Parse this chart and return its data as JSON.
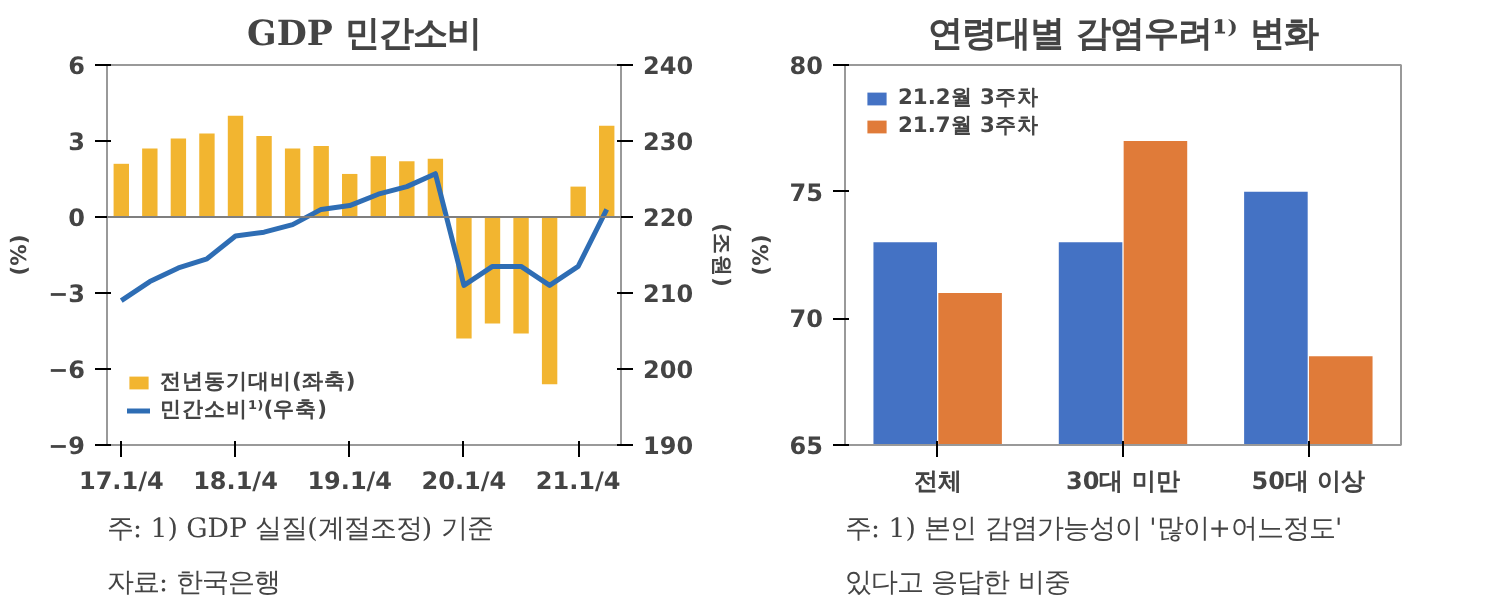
{
  "chart_data": [
    {
      "type": "bar",
      "title": "GDP 민간소비",
      "ylabel": "(%)",
      "y2label": "(조원)",
      "categories": [
        "17.1/4",
        null,
        null,
        null,
        "18.1/4",
        null,
        null,
        null,
        "19.1/4",
        null,
        null,
        null,
        "20.1/4",
        null,
        null,
        null,
        "21.1/4",
        null
      ],
      "series": [
        {
          "name": "전년동기대비(좌축)",
          "type": "bar",
          "color": "#f2b530",
          "values": [
            2.1,
            2.7,
            3.1,
            3.3,
            4.0,
            3.2,
            2.7,
            2.8,
            1.7,
            2.4,
            2.2,
            2.3,
            -4.8,
            -4.2,
            -4.6,
            -6.6,
            1.2,
            3.6
          ]
        },
        {
          "name": "민간소비¹⁾(우축)",
          "type": "line",
          "axis": "y2",
          "color": "#2e6db4",
          "marker": "none",
          "line_style": "solid",
          "values": [
            209,
            211.5,
            213.3,
            214.5,
            217.5,
            218,
            219,
            221,
            221.5,
            223,
            224,
            225.7,
            211,
            213.5,
            213.5,
            211,
            213.5,
            221
          ]
        }
      ],
      "ylim": [
        -9,
        6
      ],
      "yticks": [
        -9,
        -6,
        -3,
        0,
        3,
        6
      ],
      "y2lim": [
        190,
        240
      ],
      "y2ticks": [
        190,
        200,
        210,
        220,
        230,
        240
      ],
      "ref_lines": [
        {
          "axis": "y",
          "value": 0,
          "color": "#7f7f7f"
        }
      ],
      "grid": false,
      "legend": "bottom left",
      "annotations": [
        "주: 1) GDP 실질(계절조정) 기준",
        "자료: 한국은행"
      ]
    },
    {
      "type": "bar",
      "title": "연령대별 감염우려¹⁾ 변화",
      "ylabel": "(%)",
      "categories": [
        "전체",
        "30대 미만",
        "50대 이상"
      ],
      "series": [
        {
          "name": "21.2월 3주차",
          "color": "#4472c4",
          "values": [
            73,
            73,
            75
          ]
        },
        {
          "name": "21.7월 3주차",
          "color": "#e07b39",
          "values": [
            71,
            77,
            68.5
          ]
        }
      ],
      "ylim": [
        65,
        80
      ],
      "yticks": [
        65,
        70,
        75,
        80
      ],
      "grid": false,
      "legend": "top left",
      "annotations": [
        "주: 1) 본인  감염가능성이  '많이+어느정도'",
        "     있다고  응답한 비중"
      ]
    }
  ]
}
